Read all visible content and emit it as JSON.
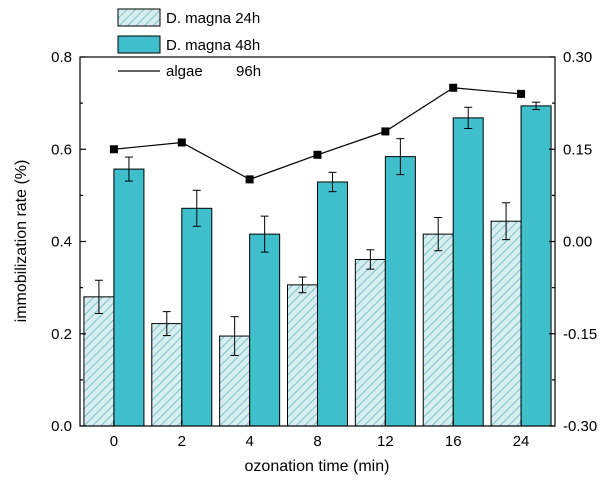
{
  "chart_data": {
    "type": "bar",
    "categories": [
      "0",
      "2",
      "4",
      "8",
      "12",
      "16",
      "24"
    ],
    "xlabel": "ozonation time (min)",
    "ylabel": "immobilization rate (%)",
    "ylim": [
      0.0,
      0.8
    ],
    "yticks": [
      "0.0",
      "0.2",
      "0.4",
      "0.6",
      "0.8"
    ],
    "y2lim": [
      -0.3,
      0.3
    ],
    "y2ticks": [
      "-0.30",
      "-0.15",
      "0.00",
      "0.15",
      "0.30"
    ],
    "grid": false,
    "legend_position": "top-left",
    "series": [
      {
        "name": "D. magna 24h",
        "kind": "bar",
        "pattern": "hatched",
        "color": "#c9e6e9",
        "values": [
          0.28,
          0.222,
          0.195,
          0.306,
          0.361,
          0.416,
          0.444
        ],
        "errors": [
          0.036,
          0.026,
          0.042,
          0.017,
          0.021,
          0.036,
          0.04
        ]
      },
      {
        "name": "D. magna 48h",
        "kind": "bar",
        "color": "#3fbfcc",
        "values": [
          0.557,
          0.472,
          0.416,
          0.529,
          0.584,
          0.668,
          0.694
        ],
        "errors": [
          0.026,
          0.039,
          0.039,
          0.021,
          0.039,
          0.023,
          0.008
        ]
      },
      {
        "name": "algae        96h",
        "kind": "line",
        "axis": "right",
        "color": "#000000",
        "values": [
          0.15,
          0.161,
          0.101,
          0.141,
          0.179,
          0.25,
          0.24
        ]
      }
    ]
  }
}
